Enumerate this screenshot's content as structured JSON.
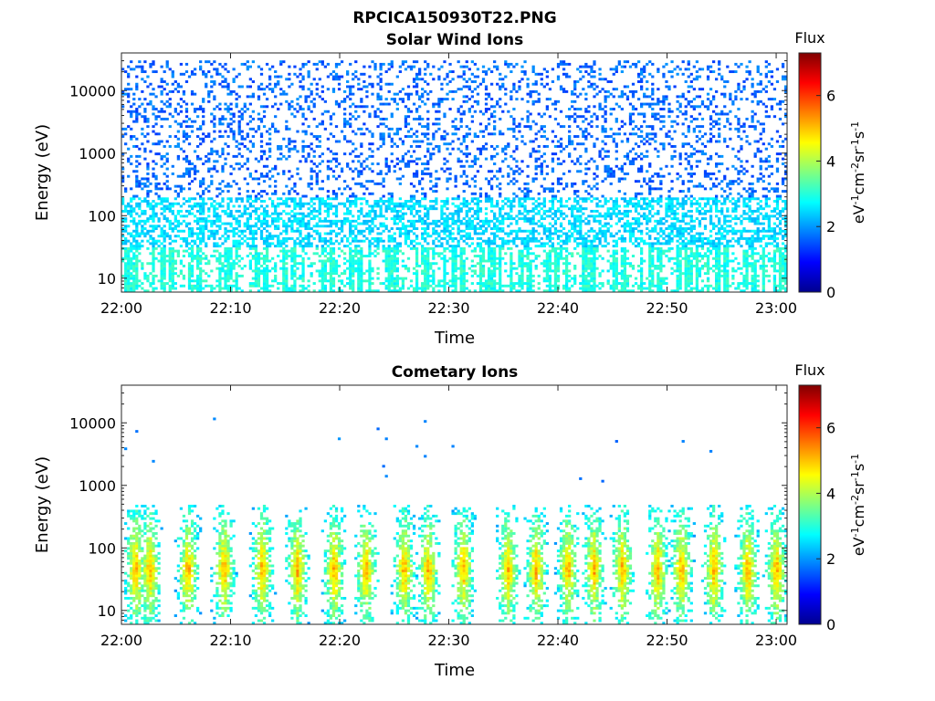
{
  "figure": {
    "title": "RPCICA150930T22.PNG"
  },
  "chart_data": [
    {
      "type": "heatmap",
      "title": "Solar Wind Ions",
      "xlabel": "Time",
      "ylabel": "Energy (eV)",
      "x_ticks": [
        "22:00",
        "22:10",
        "22:20",
        "22:30",
        "22:40",
        "22:50",
        "23:00"
      ],
      "xlim": [
        "22:00",
        "23:01"
      ],
      "y_scale": "log",
      "y_ticks": [
        "10",
        "100",
        "1000",
        "10000"
      ],
      "ylim": [
        6,
        40000
      ],
      "colorbar": {
        "title": "Flux",
        "label": "eV-1cm-2sr-1s-1",
        "ticks": [
          "0",
          "2",
          "4",
          "6"
        ],
        "range": [
          0,
          7.3
        ],
        "colormap": "jet"
      },
      "bands": [
        {
          "energy_range": [
            200,
            30000
          ],
          "flux_range": [
            1.3,
            2.0
          ],
          "description": "sparse scattered pixels"
        },
        {
          "energy_range": [
            30,
            200
          ],
          "flux_range": [
            2.2,
            2.8
          ],
          "description": "moderately dense"
        },
        {
          "energy_range": [
            6,
            30
          ],
          "flux_range": [
            2.6,
            3.3
          ],
          "description": "vertical streaks"
        }
      ]
    },
    {
      "type": "heatmap",
      "title": "Cometary Ions",
      "xlabel": "Time",
      "ylabel": "Energy (eV)",
      "x_ticks": [
        "22:00",
        "22:10",
        "22:20",
        "22:30",
        "22:40",
        "22:50",
        "23:00"
      ],
      "xlim": [
        "22:00",
        "23:01"
      ],
      "y_scale": "log",
      "y_ticks": [
        "10",
        "100",
        "1000",
        "10000"
      ],
      "ylim": [
        6,
        40000
      ],
      "colorbar": {
        "title": "Flux",
        "label": "eV-1cm-2sr-1s-1",
        "ticks": [
          "0",
          "2",
          "4",
          "6"
        ],
        "range": [
          0,
          7.3
        ],
        "colormap": "jet"
      },
      "bursts_minutes": [
        1.2,
        2.5,
        6.0,
        9.3,
        12.8,
        16.0,
        19.4,
        22.3,
        25.8,
        28.0,
        31.2,
        35.3,
        37.9,
        40.8,
        43.2,
        45.8,
        49.0,
        51.2,
        54.2,
        57.3,
        59.9
      ],
      "burst_peak_energy_eV": 45,
      "burst_energy_range": [
        6,
        500
      ],
      "peak_flux": 5.3
    }
  ]
}
